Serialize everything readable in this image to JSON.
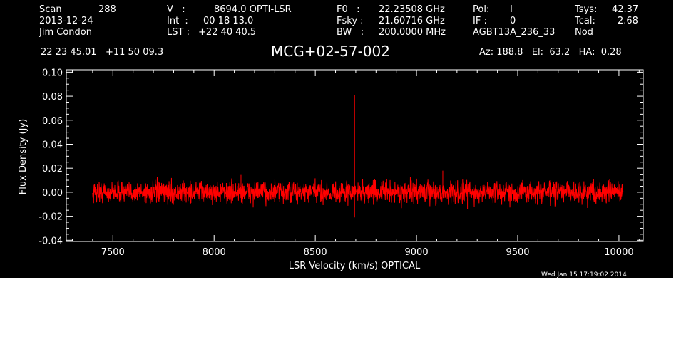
{
  "header": {
    "col1": [
      "Scan",
      "2013-12-24",
      "Jim Condon"
    ],
    "scan_number": "288",
    "col2": [
      "V   :",
      "Int  :",
      "LST :"
    ],
    "col2_vals": [
      "8694.0 OPTI-LSR",
      "00 18 13.0",
      "+22 40 40.5"
    ],
    "col3": [
      "F0   :",
      "Fsky :",
      "BW   :"
    ],
    "col3_vals": [
      "22.23508 GHz",
      "21.60716 GHz",
      "200.0000 MHz"
    ],
    "col4": [
      "Pol:",
      "IF :",
      "AGBT13A_236_33"
    ],
    "col4_vals": [
      "I",
      "0",
      ""
    ],
    "col5": [
      "Tsys:",
      "Tcal:",
      "Nod"
    ],
    "col5_vals": [
      "42.37",
      "2.68",
      ""
    ],
    "coords": "22 23 45.01   +11 50 09.3",
    "object": "MCG+02-57-002",
    "azel": "Az: 188.8   El:  63.2   HA:  0.28",
    "timestamp": "Wed Jan 15 17:19:02 2014"
  },
  "colors": {
    "background": "#000000",
    "foreground": "#ffffff",
    "trace": "#ff0000"
  },
  "chart_data": {
    "type": "line",
    "xlabel": "LSR Velocity (km/s) OPTICAL",
    "ylabel": "Flux Density (Jy)",
    "xlim": [
      7270,
      10120
    ],
    "ylim": [
      -0.041,
      0.102
    ],
    "xticks": [
      7500,
      8000,
      8500,
      9000,
      9500,
      10000
    ],
    "xticklabels": [
      "7500",
      "8000",
      "8500",
      "9000",
      "9500",
      "10000"
    ],
    "yticks": [
      -0.04,
      -0.02,
      0.0,
      0.02,
      0.04,
      0.06,
      0.08,
      0.1
    ],
    "yticklabels": [
      "-0.04",
      "-0.02",
      "0.00",
      "0.02",
      "0.04",
      "0.06",
      "0.08",
      "0.10"
    ],
    "series": [
      {
        "x_start": 7400,
        "x_end": 10020,
        "baseline": 0.0,
        "noise_rms": 0.0045,
        "features": [
          {
            "x": 8694,
            "peak": 0.081,
            "trough": -0.021
          },
          {
            "x": 8133,
            "peak": 0.015
          },
          {
            "x": 9130,
            "peak": 0.018
          },
          {
            "x": 9252,
            "trough": -0.014
          }
        ]
      }
    ],
    "grid": false,
    "legend": "none"
  }
}
